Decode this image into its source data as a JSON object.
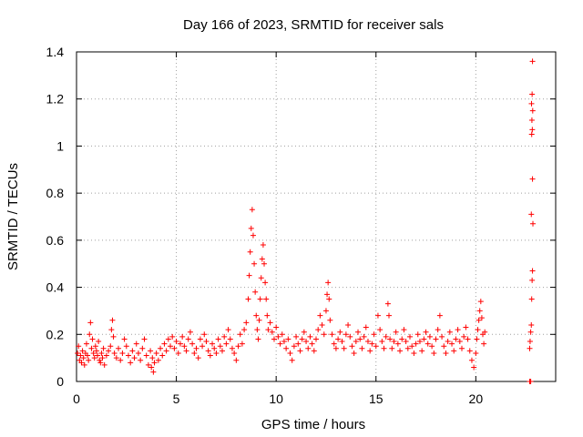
{
  "chart_data": {
    "type": "scatter",
    "title": "Day 166 of 2023, SRMTID for receiver sals",
    "xlabel": "GPS time / hours",
    "ylabel": "SRMTID / TECUs",
    "xlim": [
      0,
      24
    ],
    "ylim": [
      0,
      1.4
    ],
    "xticks": [
      0,
      5,
      10,
      15,
      20
    ],
    "xtick_labels": [
      "0",
      "5",
      "10",
      "15",
      "20"
    ],
    "yticks": [
      0,
      0.2,
      0.4,
      0.6,
      0.8,
      1.0,
      1.2,
      1.4
    ],
    "ytick_labels": [
      "0",
      "0.2",
      "0.4",
      "0.6",
      "0.8",
      "1",
      "1.2",
      "1.4"
    ],
    "grid": true,
    "marker": "plus",
    "series": [
      {
        "name": "SRMTID",
        "color": "#ff0000",
        "points": [
          [
            0.05,
            0.12
          ],
          [
            0.1,
            0.15
          ],
          [
            0.15,
            0.09
          ],
          [
            0.2,
            0.11
          ],
          [
            0.25,
            0.08
          ],
          [
            0.3,
            0.13
          ],
          [
            0.35,
            0.1
          ],
          [
            0.4,
            0.07
          ],
          [
            0.45,
            0.12
          ],
          [
            0.5,
            0.16
          ],
          [
            0.55,
            0.11
          ],
          [
            0.6,
            0.09
          ],
          [
            0.65,
            0.2
          ],
          [
            0.7,
            0.25
          ],
          [
            0.75,
            0.14
          ],
          [
            0.8,
            0.18
          ],
          [
            0.85,
            0.12
          ],
          [
            0.9,
            0.1
          ],
          [
            0.95,
            0.15
          ],
          [
            1.0,
            0.13
          ],
          [
            1.05,
            0.11
          ],
          [
            1.1,
            0.17
          ],
          [
            1.15,
            0.09
          ],
          [
            1.2,
            0.08
          ],
          [
            1.25,
            0.12
          ],
          [
            1.3,
            0.1
          ],
          [
            1.35,
            0.14
          ],
          [
            1.4,
            0.07
          ],
          [
            1.5,
            0.11
          ],
          [
            1.6,
            0.13
          ],
          [
            1.7,
            0.15
          ],
          [
            1.75,
            0.22
          ],
          [
            1.8,
            0.26
          ],
          [
            1.85,
            0.19
          ],
          [
            1.9,
            0.12
          ],
          [
            2.0,
            0.1
          ],
          [
            2.1,
            0.14
          ],
          [
            2.2,
            0.09
          ],
          [
            2.3,
            0.12
          ],
          [
            2.4,
            0.18
          ],
          [
            2.5,
            0.15
          ],
          [
            2.6,
            0.11
          ],
          [
            2.7,
            0.08
          ],
          [
            2.8,
            0.13
          ],
          [
            2.9,
            0.1
          ],
          [
            3.0,
            0.16
          ],
          [
            3.1,
            0.12
          ],
          [
            3.2,
            0.09
          ],
          [
            3.3,
            0.14
          ],
          [
            3.4,
            0.18
          ],
          [
            3.5,
            0.11
          ],
          [
            3.6,
            0.07
          ],
          [
            3.7,
            0.13
          ],
          [
            3.75,
            0.06
          ],
          [
            3.8,
            0.1
          ],
          [
            3.85,
            0.04
          ],
          [
            3.9,
            0.08
          ],
          [
            4.0,
            0.12
          ],
          [
            4.1,
            0.09
          ],
          [
            4.2,
            0.14
          ],
          [
            4.3,
            0.11
          ],
          [
            4.4,
            0.16
          ],
          [
            4.5,
            0.13
          ],
          [
            4.6,
            0.18
          ],
          [
            4.7,
            0.15
          ],
          [
            4.8,
            0.19
          ],
          [
            4.9,
            0.14
          ],
          [
            5.0,
            0.17
          ],
          [
            5.1,
            0.12
          ],
          [
            5.2,
            0.16
          ],
          [
            5.3,
            0.19
          ],
          [
            5.4,
            0.15
          ],
          [
            5.5,
            0.13
          ],
          [
            5.6,
            0.18
          ],
          [
            5.7,
            0.21
          ],
          [
            5.8,
            0.16
          ],
          [
            5.9,
            0.12
          ],
          [
            6.0,
            0.14
          ],
          [
            6.1,
            0.1
          ],
          [
            6.2,
            0.18
          ],
          [
            6.3,
            0.15
          ],
          [
            6.4,
            0.2
          ],
          [
            6.5,
            0.17
          ],
          [
            6.6,
            0.13
          ],
          [
            6.7,
            0.11
          ],
          [
            6.8,
            0.16
          ],
          [
            6.9,
            0.14
          ],
          [
            7.0,
            0.12
          ],
          [
            7.1,
            0.18
          ],
          [
            7.2,
            0.15
          ],
          [
            7.3,
            0.13
          ],
          [
            7.4,
            0.19
          ],
          [
            7.5,
            0.16
          ],
          [
            7.6,
            0.22
          ],
          [
            7.7,
            0.18
          ],
          [
            7.8,
            0.14
          ],
          [
            7.9,
            0.12
          ],
          [
            8.0,
            0.09
          ],
          [
            8.1,
            0.15
          ],
          [
            8.2,
            0.2
          ],
          [
            8.3,
            0.16
          ],
          [
            8.4,
            0.22
          ],
          [
            8.5,
            0.25
          ],
          [
            8.6,
            0.35
          ],
          [
            8.65,
            0.45
          ],
          [
            8.7,
            0.55
          ],
          [
            8.75,
            0.65
          ],
          [
            8.8,
            0.73
          ],
          [
            8.85,
            0.62
          ],
          [
            8.9,
            0.5
          ],
          [
            8.95,
            0.38
          ],
          [
            9.0,
            0.28
          ],
          [
            9.05,
            0.22
          ],
          [
            9.1,
            0.18
          ],
          [
            9.15,
            0.26
          ],
          [
            9.2,
            0.35
          ],
          [
            9.25,
            0.44
          ],
          [
            9.3,
            0.52
          ],
          [
            9.35,
            0.58
          ],
          [
            9.4,
            0.5
          ],
          [
            9.45,
            0.42
          ],
          [
            9.5,
            0.35
          ],
          [
            9.55,
            0.28
          ],
          [
            9.6,
            0.22
          ],
          [
            9.7,
            0.25
          ],
          [
            9.8,
            0.21
          ],
          [
            9.9,
            0.18
          ],
          [
            10.0,
            0.23
          ],
          [
            10.1,
            0.19
          ],
          [
            10.2,
            0.16
          ],
          [
            10.3,
            0.2
          ],
          [
            10.4,
            0.17
          ],
          [
            10.5,
            0.14
          ],
          [
            10.6,
            0.18
          ],
          [
            10.7,
            0.12
          ],
          [
            10.8,
            0.09
          ],
          [
            10.9,
            0.15
          ],
          [
            11.0,
            0.19
          ],
          [
            11.1,
            0.16
          ],
          [
            11.2,
            0.13
          ],
          [
            11.3,
            0.18
          ],
          [
            11.4,
            0.21
          ],
          [
            11.5,
            0.17
          ],
          [
            11.6,
            0.14
          ],
          [
            11.7,
            0.19
          ],
          [
            11.8,
            0.16
          ],
          [
            11.9,
            0.13
          ],
          [
            12.0,
            0.18
          ],
          [
            12.1,
            0.22
          ],
          [
            12.2,
            0.28
          ],
          [
            12.3,
            0.24
          ],
          [
            12.4,
            0.2
          ],
          [
            12.5,
            0.3
          ],
          [
            12.55,
            0.37
          ],
          [
            12.6,
            0.42
          ],
          [
            12.65,
            0.35
          ],
          [
            12.7,
            0.26
          ],
          [
            12.8,
            0.2
          ],
          [
            12.9,
            0.16
          ],
          [
            13.0,
            0.14
          ],
          [
            13.1,
            0.18
          ],
          [
            13.2,
            0.21
          ],
          [
            13.3,
            0.17
          ],
          [
            13.4,
            0.14
          ],
          [
            13.5,
            0.2
          ],
          [
            13.6,
            0.24
          ],
          [
            13.7,
            0.19
          ],
          [
            13.8,
            0.15
          ],
          [
            13.9,
            0.12
          ],
          [
            14.0,
            0.17
          ],
          [
            14.1,
            0.21
          ],
          [
            14.2,
            0.18
          ],
          [
            14.3,
            0.14
          ],
          [
            14.4,
            0.19
          ],
          [
            14.5,
            0.23
          ],
          [
            14.6,
            0.17
          ],
          [
            14.7,
            0.13
          ],
          [
            14.8,
            0.16
          ],
          [
            14.9,
            0.2
          ],
          [
            15.0,
            0.15
          ],
          [
            15.1,
            0.28
          ],
          [
            15.2,
            0.22
          ],
          [
            15.3,
            0.17
          ],
          [
            15.4,
            0.14
          ],
          [
            15.5,
            0.19
          ],
          [
            15.6,
            0.33
          ],
          [
            15.65,
            0.28
          ],
          [
            15.7,
            0.18
          ],
          [
            15.8,
            0.14
          ],
          [
            15.9,
            0.17
          ],
          [
            16.0,
            0.21
          ],
          [
            16.1,
            0.16
          ],
          [
            16.2,
            0.13
          ],
          [
            16.3,
            0.18
          ],
          [
            16.4,
            0.22
          ],
          [
            16.5,
            0.17
          ],
          [
            16.6,
            0.14
          ],
          [
            16.7,
            0.19
          ],
          [
            16.8,
            0.15
          ],
          [
            16.9,
            0.12
          ],
          [
            17.0,
            0.16
          ],
          [
            17.1,
            0.2
          ],
          [
            17.2,
            0.17
          ],
          [
            17.3,
            0.13
          ],
          [
            17.4,
            0.18
          ],
          [
            17.5,
            0.21
          ],
          [
            17.6,
            0.16
          ],
          [
            17.7,
            0.19
          ],
          [
            17.8,
            0.15
          ],
          [
            17.9,
            0.12
          ],
          [
            18.0,
            0.18
          ],
          [
            18.1,
            0.22
          ],
          [
            18.2,
            0.28
          ],
          [
            18.3,
            0.19
          ],
          [
            18.4,
            0.15
          ],
          [
            18.5,
            0.12
          ],
          [
            18.6,
            0.17
          ],
          [
            18.7,
            0.21
          ],
          [
            18.8,
            0.16
          ],
          [
            18.9,
            0.13
          ],
          [
            19.0,
            0.18
          ],
          [
            19.1,
            0.22
          ],
          [
            19.2,
            0.17
          ],
          [
            19.3,
            0.14
          ],
          [
            19.4,
            0.19
          ],
          [
            19.5,
            0.23
          ],
          [
            19.6,
            0.18
          ],
          [
            19.7,
            0.13
          ],
          [
            19.8,
            0.09
          ],
          [
            19.9,
            0.06
          ],
          [
            20.0,
            0.12
          ],
          [
            20.05,
            0.18
          ],
          [
            20.1,
            0.22
          ],
          [
            20.15,
            0.26
          ],
          [
            20.2,
            0.3
          ],
          [
            20.25,
            0.34
          ],
          [
            20.3,
            0.27
          ],
          [
            20.35,
            0.2
          ],
          [
            20.4,
            0.16
          ],
          [
            20.45,
            0.21
          ],
          [
            22.7,
            0.14
          ],
          [
            22.72,
            0.17
          ],
          [
            22.75,
            0.21
          ],
          [
            22.78,
            0.24
          ],
          [
            22.8,
            0.35
          ],
          [
            22.82,
            0.43
          ],
          [
            22.84,
            0.47
          ],
          [
            22.86,
            0.67
          ],
          [
            22.78,
            0.71
          ],
          [
            22.84,
            0.86
          ],
          [
            22.8,
            1.05
          ],
          [
            22.83,
            1.07
          ],
          [
            22.81,
            1.11
          ],
          [
            22.85,
            1.15
          ],
          [
            22.79,
            1.18
          ],
          [
            22.82,
            1.22
          ],
          [
            22.84,
            1.36
          ],
          [
            22.7,
            0.0
          ],
          [
            22.75,
            0.0
          ]
        ]
      }
    ]
  }
}
